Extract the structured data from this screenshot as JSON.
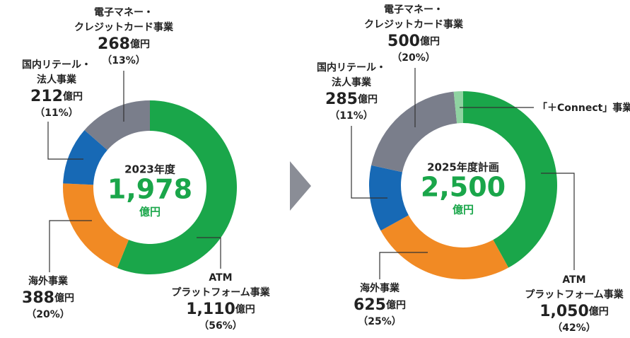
{
  "chart_data": [
    {
      "type": "donut",
      "center_title": "2023年度",
      "total": "1,978",
      "unit": "億円",
      "categories": [
        [
          "ATM",
          "プラットフォーム事業"
        ],
        [
          "海外事業"
        ],
        [
          "国内リテール・",
          "法人事業"
        ],
        [
          "電子マネー・",
          "クレジットカード事業"
        ]
      ],
      "values": [
        1110,
        388,
        212,
        268
      ],
      "value_labels": [
        "1,110",
        "388",
        "212",
        "268"
      ],
      "shares": [
        56,
        20,
        11,
        13
      ],
      "share_labels": [
        "（56%）",
        "（20%）",
        "（11%）",
        "（13%）"
      ],
      "colors": [
        "#1aa64a",
        "#f18a24",
        "#1769b5",
        "#7a7e8b"
      ]
    },
    {
      "type": "donut",
      "center_title": "2025年度計画",
      "total": "2,500",
      "unit": "億円",
      "categories": [
        [
          "ATM",
          "プラットフォーム事業"
        ],
        [
          "海外事業"
        ],
        [
          "国内リテール・",
          "法人事業"
        ],
        [
          "電子マネー・",
          "クレジットカード事業"
        ],
        [
          "「＋Connect」事業"
        ]
      ],
      "values": [
        1050,
        625,
        285,
        500,
        40
      ],
      "value_labels": [
        "1,050",
        "625",
        "285",
        "500",
        null
      ],
      "shares": [
        42,
        25,
        11,
        20,
        2
      ],
      "share_labels": [
        "（42%）",
        "（25%）",
        "（11%）",
        "（20%）",
        null
      ],
      "colors": [
        "#1aa64a",
        "#f18a24",
        "#1769b5",
        "#7a7e8b",
        "#8fd3a1"
      ]
    }
  ]
}
